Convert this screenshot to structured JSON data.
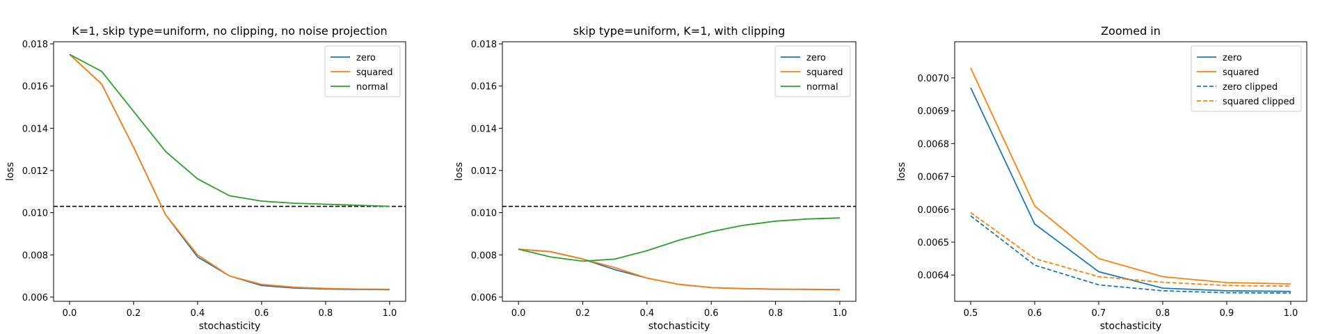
{
  "chart_data": [
    {
      "type": "line",
      "title": "K=1, skip type=uniform, no clipping, no noise projection",
      "xlabel": "stochasticity",
      "ylabel": "loss",
      "xlim": [
        -0.05,
        1.05
      ],
      "ylim": [
        0.0058,
        0.0181
      ],
      "xticks": [
        0.0,
        0.2,
        0.4,
        0.6,
        0.8,
        1.0
      ],
      "xtick_labels": [
        "0.0",
        "0.2",
        "0.4",
        "0.6",
        "0.8",
        "1.0"
      ],
      "yticks": [
        0.006,
        0.008,
        0.01,
        0.012,
        0.014,
        0.016,
        0.018
      ],
      "ytick_labels": [
        "0.006",
        "0.008",
        "0.010",
        "0.012",
        "0.014",
        "0.016",
        "0.018"
      ],
      "hline": 0.0103,
      "legend_position": "top-right",
      "x": [
        0.0,
        0.1,
        0.2,
        0.3,
        0.4,
        0.5,
        0.6,
        0.7,
        0.8,
        0.9,
        1.0
      ],
      "series": [
        {
          "name": "zero",
          "color": "#1f77b4",
          "dash": "solid",
          "values": [
            0.0175,
            0.0161,
            0.0131,
            0.0099,
            0.0079,
            0.007,
            0.00655,
            0.00643,
            0.00638,
            0.00636,
            0.00635
          ]
        },
        {
          "name": "squared",
          "color": "#ff7f0e",
          "dash": "solid",
          "values": [
            0.0175,
            0.0161,
            0.0131,
            0.0099,
            0.008,
            0.007,
            0.0066,
            0.00647,
            0.00641,
            0.00638,
            0.00637
          ]
        },
        {
          "name": "normal",
          "color": "#2ca02c",
          "dash": "solid",
          "values": [
            0.0175,
            0.0167,
            0.0148,
            0.0129,
            0.0116,
            0.0108,
            0.01055,
            0.01045,
            0.0104,
            0.01035,
            0.0103
          ]
        }
      ]
    },
    {
      "type": "line",
      "title": "skip type=uniform, K=1, with clipping",
      "xlabel": "stochasticity",
      "ylabel": "loss",
      "xlim": [
        -0.05,
        1.05
      ],
      "ylim": [
        0.0058,
        0.0181
      ],
      "xticks": [
        0.0,
        0.2,
        0.4,
        0.6,
        0.8,
        1.0
      ],
      "xtick_labels": [
        "0.0",
        "0.2",
        "0.4",
        "0.6",
        "0.8",
        "1.0"
      ],
      "yticks": [
        0.006,
        0.008,
        0.01,
        0.012,
        0.014,
        0.016,
        0.018
      ],
      "ytick_labels": [
        "0.006",
        "0.008",
        "0.010",
        "0.012",
        "0.014",
        "0.016",
        "0.018"
      ],
      "hline": 0.0103,
      "legend_position": "top-right",
      "x": [
        0.0,
        0.1,
        0.2,
        0.3,
        0.4,
        0.5,
        0.6,
        0.7,
        0.8,
        0.9,
        1.0
      ],
      "series": [
        {
          "name": "zero",
          "color": "#1f77b4",
          "dash": "solid",
          "values": [
            0.00827,
            0.00815,
            0.0078,
            0.0073,
            0.0069,
            0.0066,
            0.00645,
            0.0064,
            0.00637,
            0.00636,
            0.00635
          ]
        },
        {
          "name": "squared",
          "color": "#ff7f0e",
          "dash": "solid",
          "values": [
            0.00827,
            0.00815,
            0.0078,
            0.0074,
            0.0069,
            0.0066,
            0.00645,
            0.0064,
            0.00638,
            0.00637,
            0.00636
          ]
        },
        {
          "name": "normal",
          "color": "#2ca02c",
          "dash": "solid",
          "values": [
            0.00827,
            0.0079,
            0.0077,
            0.0078,
            0.0082,
            0.0087,
            0.0091,
            0.0094,
            0.0096,
            0.0097,
            0.00975
          ]
        }
      ]
    },
    {
      "type": "line",
      "title": "Zoomed in",
      "xlabel": "stochasticity",
      "ylabel": "loss",
      "xlim": [
        0.475,
        1.025
      ],
      "ylim": [
        0.00632,
        0.00711
      ],
      "xticks": [
        0.5,
        0.6,
        0.7,
        0.8,
        0.9,
        1.0
      ],
      "xtick_labels": [
        "0.5",
        "0.6",
        "0.7",
        "0.8",
        "0.9",
        "1.0"
      ],
      "yticks": [
        0.0064,
        0.0065,
        0.0066,
        0.0067,
        0.0068,
        0.0069,
        0.007
      ],
      "ytick_labels": [
        "0.0064",
        "0.0065",
        "0.0066",
        "0.0067",
        "0.0068",
        "0.0069",
        "0.0070"
      ],
      "legend_position": "top-right",
      "x": [
        0.5,
        0.6,
        0.7,
        0.8,
        0.9,
        1.0
      ],
      "series": [
        {
          "name": "zero",
          "color": "#1f77b4",
          "dash": "solid",
          "values": [
            0.00697,
            0.006555,
            0.00641,
            0.00636,
            0.006352,
            0.00635
          ]
        },
        {
          "name": "squared",
          "color": "#ff7f0e",
          "dash": "solid",
          "values": [
            0.00703,
            0.00661,
            0.00645,
            0.006395,
            0.006377,
            0.006373
          ]
        },
        {
          "name": "zero clipped",
          "color": "#1f77b4",
          "dash": "dashed",
          "values": [
            0.00658,
            0.00643,
            0.00637,
            0.006352,
            0.006346,
            0.006345
          ]
        },
        {
          "name": "squared clipped",
          "color": "#ff7f0e",
          "dash": "dashed",
          "values": [
            0.00659,
            0.00645,
            0.006395,
            0.006378,
            0.006368,
            0.006366
          ]
        }
      ]
    }
  ]
}
